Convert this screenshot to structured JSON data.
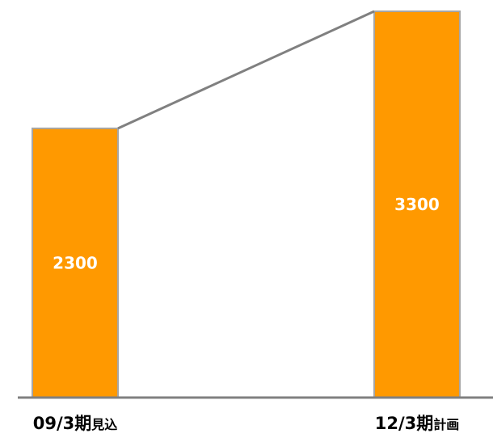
{
  "chart_data": {
    "type": "bar",
    "categories": [
      {
        "main": "09/3期",
        "suffix": "見込"
      },
      {
        "main": "12/3期",
        "suffix": "計画"
      }
    ],
    "values": [
      2300,
      3300
    ],
    "data_labels": [
      "2300",
      "3300"
    ],
    "connector_line": true,
    "ylim": [
      0,
      3300
    ],
    "grid": false,
    "legend": "none",
    "title": "",
    "xlabel": "",
    "ylabel": ""
  },
  "colors": {
    "bar_fill": "#FF9900",
    "bar_stroke": "#A6A6A6",
    "axis": "#808080",
    "connector": "#808080",
    "label_text": "#FFFFFF",
    "category_text": "#000000"
  }
}
